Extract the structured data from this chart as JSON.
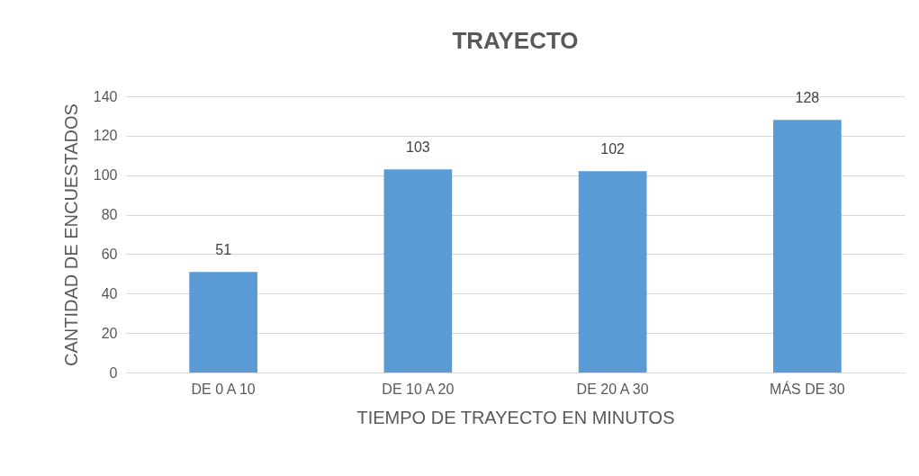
{
  "chart_data": {
    "type": "bar",
    "title": "TRAYECTO",
    "xlabel": "TIEMPO DE TRAYECTO EN MINUTOS",
    "ylabel": "CANTIDAD DE ENCUESTADOS",
    "categories": [
      "DE 0 A 10",
      "DE 10 A 20",
      "DE 20 A 30",
      "MÁS DE 30"
    ],
    "values": [
      51,
      103,
      102,
      128
    ],
    "color": "#5b9bd5",
    "ylim": [
      0,
      140
    ],
    "yticks": [
      0,
      20,
      40,
      60,
      80,
      100,
      120,
      140
    ],
    "grid": "y",
    "data_labels": true
  }
}
